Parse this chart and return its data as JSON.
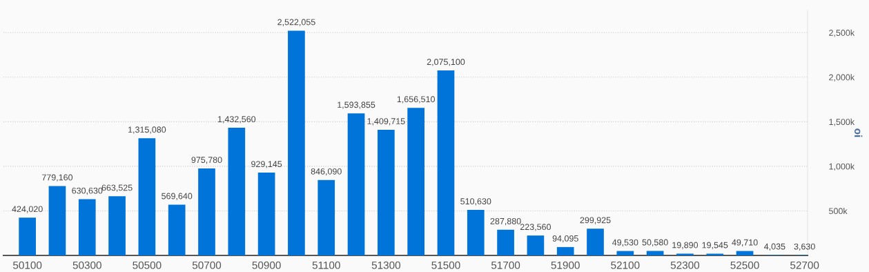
{
  "chart_data": {
    "type": "bar",
    "categories": [
      "50100",
      null,
      "50300",
      null,
      "50500",
      null,
      "50700",
      null,
      "50900",
      null,
      "51100",
      null,
      "51300",
      null,
      "51500",
      null,
      "51700",
      null,
      "51900",
      null,
      "52100",
      null,
      "52300",
      null,
      "52500",
      null,
      "52700"
    ],
    "values": [
      424020,
      779160,
      630630,
      663525,
      1315080,
      569640,
      975780,
      1432560,
      929145,
      2522055,
      846090,
      1593855,
      1409715,
      1656510,
      2075100,
      510630,
      287880,
      223560,
      94095,
      299925,
      49530,
      50580,
      19890,
      19545,
      49710,
      4035,
      3630
    ],
    "value_labels": [
      "424,020",
      "779,160",
      "630,630",
      "663,525",
      "1,315,080",
      "569,640",
      "975,780",
      "1,432,560",
      "929,145",
      "2,522,055",
      "846,090",
      "1,593,855",
      "1,409,715",
      "1,656,510",
      "2,075,100",
      "510,630",
      "287,880",
      "223,560",
      "94,095",
      "299,925",
      "49,530",
      "50,580",
      "19,890",
      "19,545",
      "49,710",
      "4,035",
      "3,630"
    ],
    "color": "#0074d9",
    "ylabel": "oi",
    "ylim": [
      0,
      2750000
    ],
    "yticks": [
      {
        "value": 500000,
        "label": "500k"
      },
      {
        "value": 1000000,
        "label": "1,000k"
      },
      {
        "value": 1500000,
        "label": "1,500k"
      },
      {
        "value": 2000000,
        "label": "2,000k"
      },
      {
        "value": 2500000,
        "label": "2,500k"
      }
    ],
    "grid": "y",
    "legend": false
  }
}
